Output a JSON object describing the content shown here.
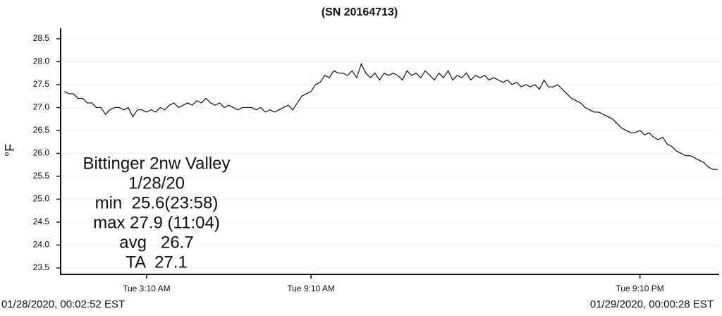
{
  "chart_data": {
    "type": "line",
    "title": "(SN 20164713)",
    "ylabel": "°F",
    "start_label": "01/28/2020, 00:02:52 EST",
    "end_label": "01/29/2020, 00:00:28 EST",
    "annotations": [
      "Bittinger 2nw Valley",
      "1/28/20",
      "min  25.6(23:58)",
      "max 27.9 (11:04)",
      "avg   26.7",
      "TA  27.1"
    ],
    "color": "#111111",
    "grid": true,
    "ylim": [
      23.36,
      28.73
    ],
    "yticks": [
      23.5,
      {
        "value": 24,
        "label": "24.0"
      },
      24.5,
      {
        "value": 25,
        "label": "25.0"
      },
      25.5,
      {
        "value": 26,
        "label": "26.0"
      },
      26.5,
      {
        "value": 27,
        "label": "27.0"
      },
      27.5,
      {
        "value": 28,
        "label": "28.0"
      },
      28.5
    ],
    "categories": [
      null,
      null,
      null,
      null,
      null,
      null,
      null,
      null,
      null,
      null,
      null,
      null,
      null,
      null,
      null,
      null,
      null,
      null,
      "Tue 3:10 AM",
      null,
      null,
      null,
      null,
      null,
      null,
      null,
      null,
      null,
      null,
      null,
      null,
      null,
      null,
      null,
      null,
      null,
      null,
      null,
      null,
      null,
      null,
      null,
      null,
      null,
      null,
      null,
      null,
      null,
      null,
      null,
      null,
      null,
      null,
      null,
      "Tue 9:10 AM",
      null,
      null,
      null,
      null,
      null,
      null,
      null,
      null,
      null,
      null,
      null,
      null,
      null,
      null,
      null,
      null,
      null,
      null,
      null,
      null,
      null,
      null,
      null,
      null,
      null,
      null,
      null,
      null,
      null,
      null,
      null,
      null,
      null,
      null,
      null,
      null,
      null,
      null,
      null,
      null,
      null,
      null,
      null,
      null,
      null,
      null,
      null,
      null,
      null,
      null,
      null,
      null,
      null,
      null,
      null,
      null,
      null,
      null,
      null,
      null,
      null,
      null,
      null,
      null,
      null,
      null,
      null,
      null,
      null,
      null,
      null,
      "Tue 9:10 PM",
      null,
      null,
      null,
      null,
      null,
      null,
      null,
      null,
      null,
      null,
      null,
      null,
      null,
      null,
      null,
      null,
      null
    ],
    "values": [
      27.35,
      27.3,
      27.3,
      27.2,
      27.2,
      27.1,
      27.1,
      27.0,
      27.0,
      26.85,
      26.95,
      27.0,
      27.0,
      26.95,
      27.0,
      26.8,
      26.95,
      26.95,
      26.9,
      26.95,
      26.9,
      27.0,
      26.95,
      27.05,
      27.1,
      27.0,
      27.05,
      27.1,
      27.05,
      27.15,
      27.1,
      27.2,
      27.1,
      27.05,
      27.1,
      27.0,
      27.05,
      27.0,
      26.95,
      27.0,
      27.0,
      27.0,
      26.95,
      27.0,
      26.9,
      26.95,
      26.9,
      26.95,
      27.0,
      27.05,
      26.95,
      27.1,
      27.25,
      27.3,
      27.35,
      27.5,
      27.55,
      27.7,
      27.65,
      27.8,
      27.75,
      27.75,
      27.7,
      27.8,
      27.65,
      27.95,
      27.75,
      27.65,
      27.75,
      27.6,
      27.75,
      27.7,
      27.75,
      27.7,
      27.6,
      27.8,
      27.7,
      27.75,
      27.65,
      27.8,
      27.7,
      27.6,
      27.75,
      27.65,
      27.8,
      27.6,
      27.7,
      27.65,
      27.75,
      27.6,
      27.7,
      27.65,
      27.7,
      27.6,
      27.65,
      27.6,
      27.55,
      27.6,
      27.5,
      27.55,
      27.45,
      27.5,
      27.45,
      27.5,
      27.4,
      27.6,
      27.45,
      27.45,
      27.5,
      27.4,
      27.3,
      27.2,
      27.15,
      27.1,
      27.0,
      26.95,
      26.9,
      26.9,
      26.85,
      26.8,
      26.75,
      26.65,
      26.55,
      26.5,
      26.45,
      26.45,
      26.5,
      26.4,
      26.45,
      26.35,
      26.3,
      26.35,
      26.2,
      26.15,
      26.05,
      26.0,
      25.95,
      25.95,
      25.9,
      25.85,
      25.8,
      25.7,
      25.65,
      25.65
    ]
  }
}
